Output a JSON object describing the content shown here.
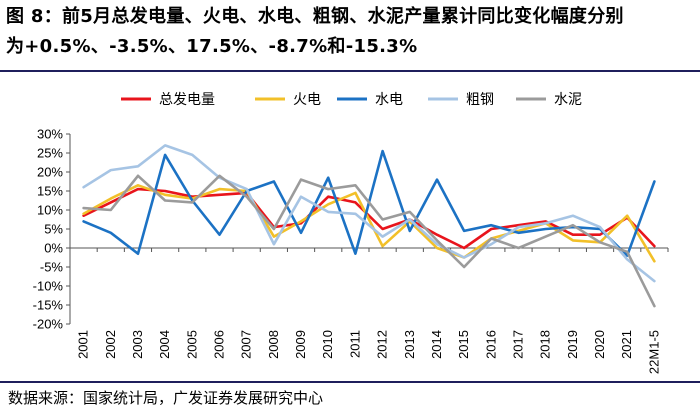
{
  "figure": {
    "title_line1": "图 8：前5月总发电量、火电、水电、粗钢、水泥产量累计同比变化幅度分别",
    "title_line2": "为+0.5%、-3.5%、17.5%、-8.7%和-15.3%",
    "source": "数据来源：国家统计局，广发证券发展研究中心"
  },
  "chart_data": {
    "type": "line",
    "categories": [
      "2001",
      "2002",
      "2003",
      "2004",
      "2005",
      "2006",
      "2007",
      "2008",
      "2009",
      "2010",
      "2011",
      "2012",
      "2013",
      "2014",
      "2015",
      "2016",
      "2017",
      "2018",
      "2019",
      "2020",
      "2021",
      "22M1-5"
    ],
    "ylim": [
      -20,
      30
    ],
    "yticks": [
      30,
      25,
      20,
      15,
      10,
      5,
      0,
      -5,
      -10,
      -15,
      -20
    ],
    "ytick_labels": [
      "30%",
      "25%",
      "20%",
      "15%",
      "10%",
      "5%",
      "0%",
      "-5%",
      "-10%",
      "-15%",
      "-20%"
    ],
    "grid": false,
    "legend_position": "top",
    "series": [
      {
        "name": "总发电量",
        "color": "#e8141c",
        "values": [
          8.5,
          12.0,
          15.5,
          15.0,
          13.5,
          14.0,
          14.5,
          5.5,
          6.5,
          13.5,
          12.0,
          5.0,
          7.5,
          3.5,
          0.0,
          5.0,
          6.0,
          7.0,
          3.5,
          3.5,
          8.0,
          0.5
        ]
      },
      {
        "name": "火电",
        "color": "#f2c029",
        "values": [
          9.0,
          13.0,
          16.5,
          14.0,
          13.0,
          15.5,
          15.0,
          3.0,
          7.0,
          11.5,
          14.5,
          0.5,
          7.0,
          0.0,
          -2.5,
          2.5,
          4.5,
          6.5,
          2.0,
          1.5,
          8.5,
          -3.5
        ]
      },
      {
        "name": "水电",
        "color": "#1c72c4",
        "values": [
          7.0,
          4.0,
          -1.5,
          24.5,
          12.5,
          3.5,
          15.0,
          17.5,
          4.0,
          18.5,
          -1.5,
          25.5,
          4.5,
          18.0,
          4.5,
          6.0,
          4.0,
          5.0,
          5.5,
          5.0,
          -2.0,
          17.5
        ]
      },
      {
        "name": "粗钢",
        "color": "#a6c4e4",
        "values": [
          16.0,
          20.5,
          21.5,
          27.0,
          24.5,
          18.5,
          15.5,
          1.0,
          13.5,
          9.5,
          9.0,
          3.0,
          7.5,
          1.0,
          -2.5,
          1.0,
          5.5,
          6.5,
          8.5,
          5.5,
          -3.0,
          -8.7
        ]
      },
      {
        "name": "水泥",
        "color": "#9b9b9b",
        "values": [
          10.5,
          10.0,
          19.0,
          12.5,
          12.0,
          19.0,
          13.5,
          5.0,
          18.0,
          15.5,
          16.5,
          7.5,
          9.5,
          2.0,
          -5.0,
          2.5,
          0.0,
          3.0,
          6.0,
          1.5,
          -1.0,
          -15.3
        ]
      }
    ]
  }
}
